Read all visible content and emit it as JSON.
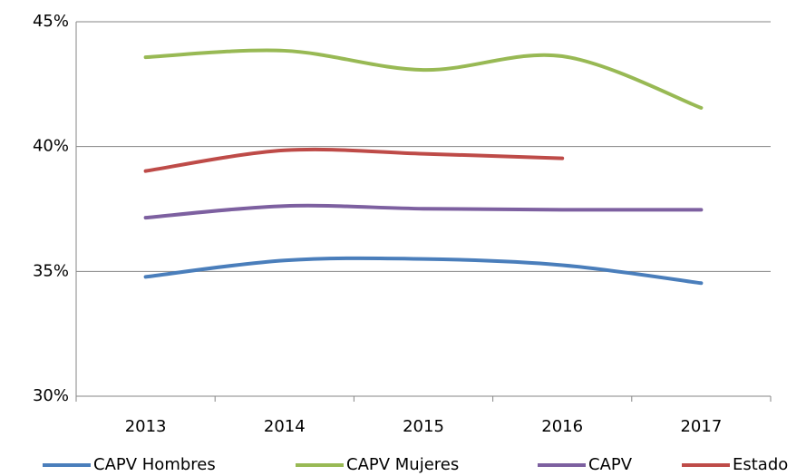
{
  "chart_data": {
    "type": "line",
    "categories": [
      "2013",
      "2014",
      "2015",
      "2016",
      "2017"
    ],
    "series": [
      {
        "name": "CAPV Hombres",
        "color": "#4a7ebb",
        "values": [
          34.78,
          35.44,
          35.5,
          35.25,
          34.53
        ]
      },
      {
        "name": "CAPV Mujeres",
        "color": "#98b954",
        "values": [
          43.58,
          43.84,
          43.07,
          43.62,
          41.55
        ]
      },
      {
        "name": "CAPV",
        "color": "#7d60a0",
        "values": [
          37.15,
          37.62,
          37.51,
          37.47,
          37.47
        ]
      },
      {
        "name": "Estado",
        "color": "#be4b48",
        "values": [
          39.02,
          39.85,
          39.71,
          39.53,
          null
        ]
      }
    ],
    "ylim": [
      30,
      45
    ],
    "yticks": [
      {
        "value": 30,
        "label": "30%"
      },
      {
        "value": 35,
        "label": "35%"
      },
      {
        "value": 40,
        "label": "40%"
      },
      {
        "value": 45,
        "label": "45%"
      }
    ],
    "grid": true,
    "smooth": true,
    "legend": "bottom"
  }
}
